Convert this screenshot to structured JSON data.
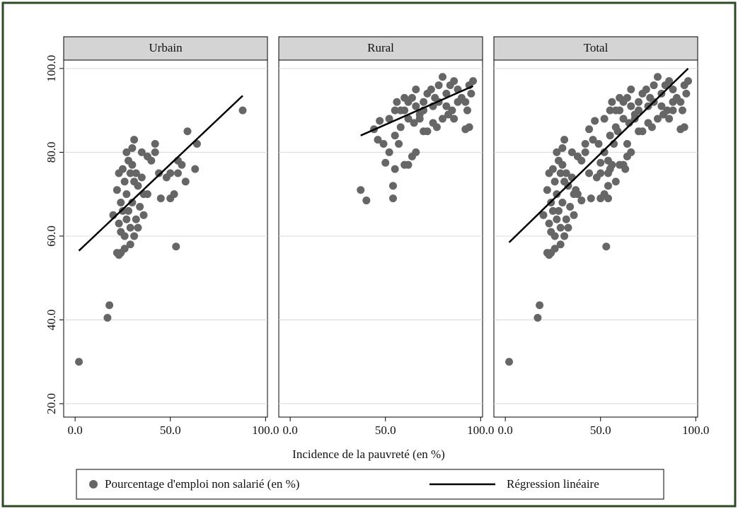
{
  "chart_data": {
    "type": "scatter",
    "xlabel": "Incidence de la pauvreté (en %)",
    "xlim": [
      -6,
      101
    ],
    "xticks": [
      {
        "value": 0,
        "label": "0.0"
      },
      {
        "value": 50,
        "label": "50.0"
      },
      {
        "value": 100,
        "label": "100.0"
      }
    ],
    "ylim": [
      16.8,
      102
    ],
    "yticks": [
      {
        "value": 20,
        "label": "20.0"
      },
      {
        "value": 40,
        "label": "40.0"
      },
      {
        "value": 60,
        "label": "60.0"
      },
      {
        "value": 80,
        "label": "80.0"
      },
      {
        "value": 100,
        "label": "100.0"
      }
    ],
    "grid": true,
    "series": [
      {
        "name": "Pourcentage d'emploi non salarié (en %)",
        "color": "#666666"
      },
      {
        "name": "Régression linéaire",
        "color": "#000000"
      }
    ],
    "panels": [
      {
        "title": "Urbain",
        "x": [
          2,
          17,
          18,
          53,
          88,
          20,
          22,
          23,
          24,
          26,
          29,
          22,
          23,
          25,
          27,
          28,
          30,
          31,
          29,
          31,
          33,
          32,
          26,
          24,
          25,
          27,
          29,
          31,
          23,
          24,
          26,
          28,
          30,
          32,
          34,
          36,
          35,
          38,
          40,
          42,
          42,
          44,
          45,
          48,
          50,
          50,
          52,
          54,
          54,
          56,
          58,
          59,
          64,
          63,
          36,
          38,
          33,
          27,
          35,
          30
        ],
        "y": [
          30,
          40.5,
          43.5,
          57.5,
          90,
          65,
          56,
          55.5,
          56,
          57,
          58,
          71,
          75,
          76,
          80,
          78,
          81,
          83,
          75,
          73,
          72,
          75,
          73,
          68,
          66,
          64,
          62,
          60,
          63,
          61,
          60,
          66,
          68,
          64,
          67,
          70,
          80,
          79,
          78,
          82,
          80,
          75,
          69,
          74,
          75,
          69,
          70,
          75,
          78,
          77,
          73,
          85,
          82,
          76,
          65,
          70,
          62,
          70,
          74,
          77
        ],
        "fit_x": [
          2,
          88
        ],
        "fit_y": [
          56.5,
          93.5
        ]
      },
      {
        "title": "Rural",
        "x": [
          37,
          40,
          54,
          54,
          55,
          50,
          46,
          49,
          52,
          44,
          47,
          52,
          55,
          57,
          60,
          62,
          64,
          66,
          58,
          60,
          62,
          64,
          66,
          68,
          70,
          72,
          74,
          76,
          78,
          80,
          82,
          84,
          86,
          88,
          90,
          92,
          94,
          96,
          95,
          93,
          94,
          92,
          85,
          80,
          75,
          72,
          70,
          68,
          65,
          62,
          58,
          56,
          55,
          60,
          78,
          82,
          86,
          88,
          75,
          70,
          66,
          83,
          77
        ],
        "y": [
          71,
          68.5,
          69,
          72,
          76,
          77.5,
          83,
          82,
          80,
          85.5,
          87.5,
          88,
          84,
          82,
          77,
          77,
          79,
          80,
          86,
          90,
          92,
          93,
          91,
          89,
          92,
          94,
          95,
          93,
          96,
          98,
          94,
          96,
          97,
          95,
          93,
          92,
          96,
          97,
          94,
          90,
          86,
          85.5,
          90,
          88,
          87,
          85,
          85,
          88,
          87,
          88,
          90,
          92,
          90,
          93,
          92,
          91,
          88,
          92,
          91,
          90,
          95,
          89,
          86
        ],
        "fit_x": [
          37,
          96
        ],
        "fit_y": [
          84,
          95.8
        ]
      },
      {
        "title": "Total",
        "x": [
          2,
          17,
          18,
          53,
          88,
          20,
          22,
          23,
          24,
          26,
          29,
          22,
          23,
          25,
          27,
          28,
          30,
          31,
          29,
          31,
          33,
          32,
          26,
          24,
          25,
          27,
          29,
          31,
          23,
          24,
          26,
          28,
          30,
          32,
          34,
          36,
          35,
          38,
          40,
          42,
          42,
          44,
          45,
          48,
          50,
          50,
          52,
          54,
          54,
          56,
          58,
          59,
          64,
          63,
          36,
          38,
          33,
          27,
          35,
          30,
          37,
          40,
          54,
          54,
          55,
          50,
          46,
          49,
          52,
          44,
          47,
          52,
          55,
          57,
          60,
          62,
          64,
          66,
          58,
          60,
          62,
          64,
          66,
          68,
          70,
          72,
          74,
          76,
          78,
          80,
          82,
          84,
          86,
          88,
          90,
          92,
          94,
          96,
          95,
          93,
          94,
          92,
          85,
          80,
          75,
          72,
          70,
          68,
          65,
          62,
          58,
          56,
          55,
          60,
          78,
          82,
          86,
          88,
          75,
          70,
          66,
          83,
          77
        ],
        "y": [
          30,
          40.5,
          43.5,
          57.5,
          90,
          65,
          56,
          55.5,
          56,
          57,
          58,
          71,
          75,
          76,
          80,
          78,
          81,
          83,
          75,
          73,
          72,
          75,
          73,
          68,
          66,
          64,
          62,
          60,
          63,
          61,
          60,
          66,
          68,
          64,
          67,
          70,
          80,
          79,
          78,
          82,
          80,
          75,
          69,
          74,
          75,
          69,
          70,
          75,
          78,
          77,
          73,
          85,
          82,
          76,
          65,
          70,
          62,
          70,
          74,
          77,
          71,
          68.5,
          69,
          72,
          76,
          77.5,
          83,
          82,
          80,
          85.5,
          87.5,
          88,
          84,
          82,
          77,
          77,
          79,
          80,
          86,
          90,
          92,
          93,
          91,
          89,
          92,
          94,
          95,
          93,
          96,
          98,
          94,
          96,
          97,
          95,
          93,
          92,
          96,
          97,
          94,
          90,
          86,
          85.5,
          90,
          88,
          87,
          85,
          85,
          88,
          87,
          88,
          90,
          92,
          90,
          93,
          92,
          91,
          88,
          92,
          91,
          90,
          95,
          89,
          86
        ],
        "fit_x": [
          2,
          96
        ],
        "fit_y": [
          58.5,
          100
        ]
      }
    ]
  }
}
